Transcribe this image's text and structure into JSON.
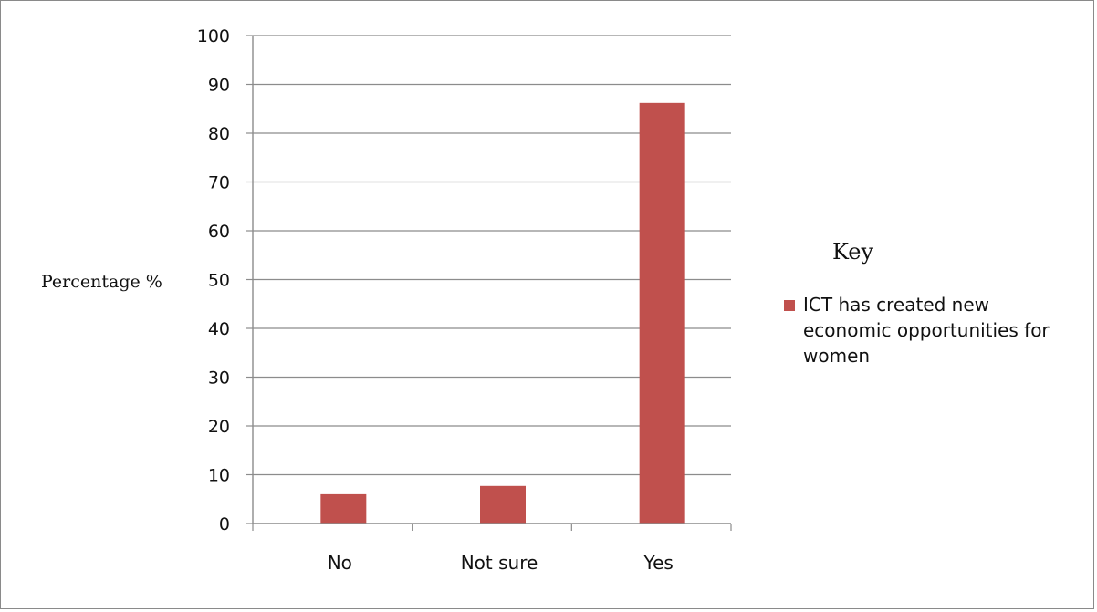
{
  "chart_data": {
    "type": "bar",
    "categories": [
      "No",
      "Not sure",
      "Yes"
    ],
    "series": [
      {
        "name": "ICT has created new economic opportunities for women",
        "values": [
          6,
          7.7,
          86.2
        ],
        "color": "#c0504d"
      }
    ],
    "ylabel": "Percentage %",
    "ylim": [
      0,
      100
    ],
    "yticks": [
      0,
      10,
      20,
      30,
      40,
      50,
      60,
      70,
      80,
      90,
      100
    ],
    "grid": true,
    "legend": {
      "title": "Key",
      "position": "right",
      "lines": [
        "ICT has created new",
        "economic opportunities for",
        "women"
      ]
    }
  }
}
